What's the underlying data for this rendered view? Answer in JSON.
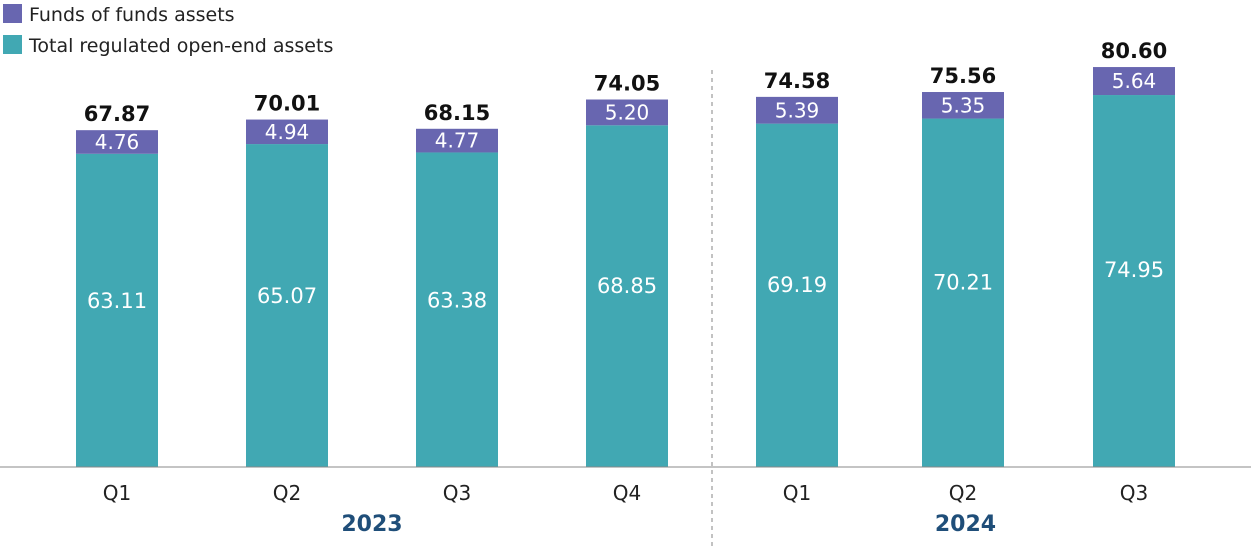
{
  "chart_data": {
    "type": "bar",
    "stacked": true,
    "title": "",
    "xlabel": "",
    "ylabel": "",
    "categories": [
      "Q1",
      "Q2",
      "Q3",
      "Q4",
      "Q1",
      "Q2",
      "Q3"
    ],
    "groups": [
      {
        "label": "2023",
        "categories": [
          "Q1",
          "Q2",
          "Q3",
          "Q4"
        ]
      },
      {
        "label": "2024",
        "categories": [
          "Q1",
          "Q2",
          "Q3"
        ]
      }
    ],
    "series": [
      {
        "name": "Total regulated open-end assets",
        "color": "#41a8b3",
        "values": [
          63.11,
          65.07,
          63.38,
          68.85,
          69.19,
          70.21,
          74.95
        ],
        "labels": [
          "63.11",
          "65.07",
          "63.38",
          "68.85",
          "69.19",
          "70.21",
          "74.95"
        ]
      },
      {
        "name": "Funds of funds assets",
        "color": "#6866b0",
        "values": [
          4.76,
          4.94,
          4.77,
          5.2,
          5.39,
          5.35,
          5.64
        ],
        "labels": [
          "4.76",
          "4.94",
          "4.77",
          "5.20",
          "5.39",
          "5.35",
          "5.64"
        ]
      }
    ],
    "totals": [
      67.87,
      70.01,
      68.15,
      74.05,
      74.58,
      75.56,
      80.6
    ],
    "total_labels": [
      "67.87",
      "70.01",
      "68.15",
      "74.05",
      "74.58",
      "75.56",
      "80.60"
    ],
    "ylim": [
      0,
      80.6
    ],
    "grid": false,
    "legend": {
      "placement": "top-left",
      "entries": [
        {
          "name": "Funds of funds assets",
          "color": "#6866b0"
        },
        {
          "name": "Total regulated open-end assets",
          "color": "#41a8b3"
        }
      ]
    },
    "year_label_color": "#1f4e79",
    "axis_color": "#888888"
  }
}
